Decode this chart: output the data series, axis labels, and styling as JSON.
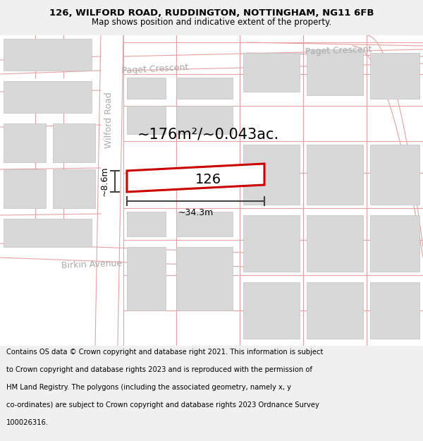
{
  "title_line1": "126, WILFORD ROAD, RUDDINGTON, NOTTINGHAM, NG11 6FB",
  "title_line2": "Map shows position and indicative extent of the property.",
  "footer_lines": [
    "Contains OS data © Crown copyright and database right 2021. This information is subject",
    "to Crown copyright and database rights 2023 and is reproduced with the permission of",
    "HM Land Registry. The polygons (including the associated geometry, namely x, y",
    "co-ordinates) are subject to Crown copyright and database rights 2023 Ordnance Survey",
    "100026316."
  ],
  "map_bg": "#f8f8f8",
  "road_line_color": "#e8a0a0",
  "building_color": "#d8d8d8",
  "building_outline": "#c0c0c0",
  "highlight_color": "#cc0000",
  "dim_color": "#444444",
  "label_126": "126",
  "area_label": "~176m²/~0.043ac.",
  "width_label": "~34.3m",
  "height_label": "~8.6m",
  "street_wilford": "Wilford Road",
  "street_paget_left": "Paget Crescent",
  "street_paget_right": "Paget Crescent",
  "street_birkin": "Birkin Avenue",
  "fig_width": 6.0,
  "fig_height": 6.25,
  "title_fs": 9.5,
  "subtitle_fs": 8.5,
  "footer_fs": 7.2,
  "street_fs": 9,
  "area_fs": 15,
  "dim_fs": 9,
  "label_fs": 14
}
